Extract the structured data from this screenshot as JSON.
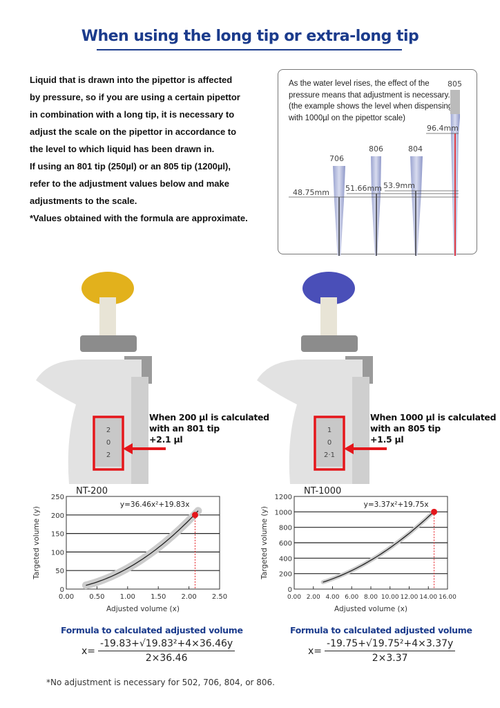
{
  "title": "When using the long tip or extra-long tip",
  "intro": [
    "Liquid that is drawn into the pipettor is affected",
    "by pressure, so if you are using a certain pipettor",
    "in combination with a long tip, it is necessary to",
    "adjust the scale on the pipettor in accordance to",
    "the level to which liquid has been drawn in.",
    "If using an 801 tip (250µl) or an 805 tip (1200µl),",
    "refer to the adjustment values below and make",
    "adjustments to the scale.",
    "*Values obtained with the formula are approximate."
  ],
  "tip_box": {
    "text": "As the water level rises, the effect of the pressure means that adjustment is necessary. (the example shows the level when dispensing with 1000µl on the pipettor scale)",
    "tips": [
      {
        "name": "706",
        "level": "48.75mm"
      },
      {
        "name": "806",
        "level": "51.66mm"
      },
      {
        "name": "804",
        "level": "53.9mm"
      },
      {
        "name": "805",
        "level": "96.4mm"
      }
    ]
  },
  "pipettes": [
    {
      "knob_color": "#e2b11c",
      "counter": [
        "2",
        "0",
        "2"
      ],
      "callout": [
        "When 200 µl is calculated",
        "with an 801 tip",
        "+2.1 µl"
      ]
    },
    {
      "knob_color": "#4a4fb8",
      "counter": [
        "1",
        "0",
        "2·1"
      ],
      "callout": [
        "When 1000 µl is calculated",
        "with an 805 tip",
        "+1.5 µl"
      ]
    }
  ],
  "highlight_color": "#e4161b",
  "chart_data": [
    {
      "type": "line",
      "title": "NT-200",
      "equation": "y=36.46x²+19.83x",
      "a": 36.46,
      "b": 19.83,
      "xlabel": "Adjusted volume (x)",
      "ylabel": "Targeted volume (y)",
      "xlim": [
        0,
        2.5
      ],
      "ylim": [
        0,
        250
      ],
      "xticks": [
        "0.00",
        "0.50",
        "1.00",
        "1.50",
        "2.00",
        "2.50"
      ],
      "yticks": [
        "0",
        "50",
        "100",
        "150",
        "200",
        "250"
      ],
      "x_range": [
        0.32,
        2.15
      ],
      "point": {
        "x": 2.1,
        "y": 200
      },
      "grid": "horizontal"
    },
    {
      "type": "line",
      "title": "NT-1000",
      "equation": "y=3.37x²+19.75x",
      "a": 3.37,
      "b": 19.75,
      "xlabel": "Adjusted volume (x)",
      "ylabel": "Targeted volume (y)",
      "xlim": [
        0,
        16
      ],
      "ylim": [
        0,
        1200
      ],
      "xticks": [
        "0.00",
        "2.00",
        "4.00",
        "6.00",
        "8.00",
        "10.00",
        "12.00",
        "14.00",
        "16.00"
      ],
      "yticks": [
        "0",
        "200",
        "400",
        "600",
        "800",
        "1000",
        "1200"
      ],
      "x_range": [
        3,
        14.6
      ],
      "point": {
        "x": 14.6,
        "y": 1000
      },
      "grid": "horizontal"
    }
  ],
  "formulas": [
    {
      "title": "Formula to calculated adjusted volume",
      "lhs": "x=",
      "numerator": "-19.83+√19.83²+4×36.46y",
      "denominator": "2×36.46"
    },
    {
      "title": "Formula to calculated adjusted volume",
      "lhs": "x=",
      "numerator": "-19.75+√19.75²+4×3.37y",
      "denominator": "2×3.37"
    }
  ],
  "note": "*No adjustment is necessary for 502, 706, 804, or 806."
}
